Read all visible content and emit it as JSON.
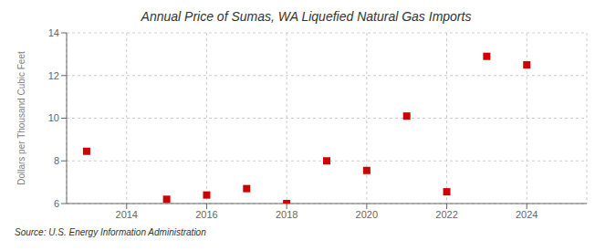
{
  "chart_data": {
    "type": "scatter",
    "title": "Annual Price of Sumas, WA Liquefied Natural Gas Imports",
    "ylabel": "Dollars per Thousand Cubic Feet",
    "annotations": [
      "Source: U.S. Energy Information Administration"
    ],
    "x": [
      2013,
      2015,
      2016,
      2017,
      2018,
      2019,
      2020,
      2021,
      2022,
      2023,
      2024
    ],
    "values": [
      8.45,
      6.2,
      6.4,
      6.7,
      6.0,
      8.0,
      7.55,
      10.1,
      6.55,
      12.9,
      12.5
    ],
    "color": "#cc0000",
    "marker": "square",
    "xlim": [
      2012.5,
      2025.5
    ],
    "xticks": [
      2014,
      2016,
      2018,
      2020,
      2022,
      2024
    ],
    "ylim": [
      6,
      14
    ],
    "yticks": [
      6,
      8,
      10,
      12,
      14
    ],
    "grid": true
  }
}
